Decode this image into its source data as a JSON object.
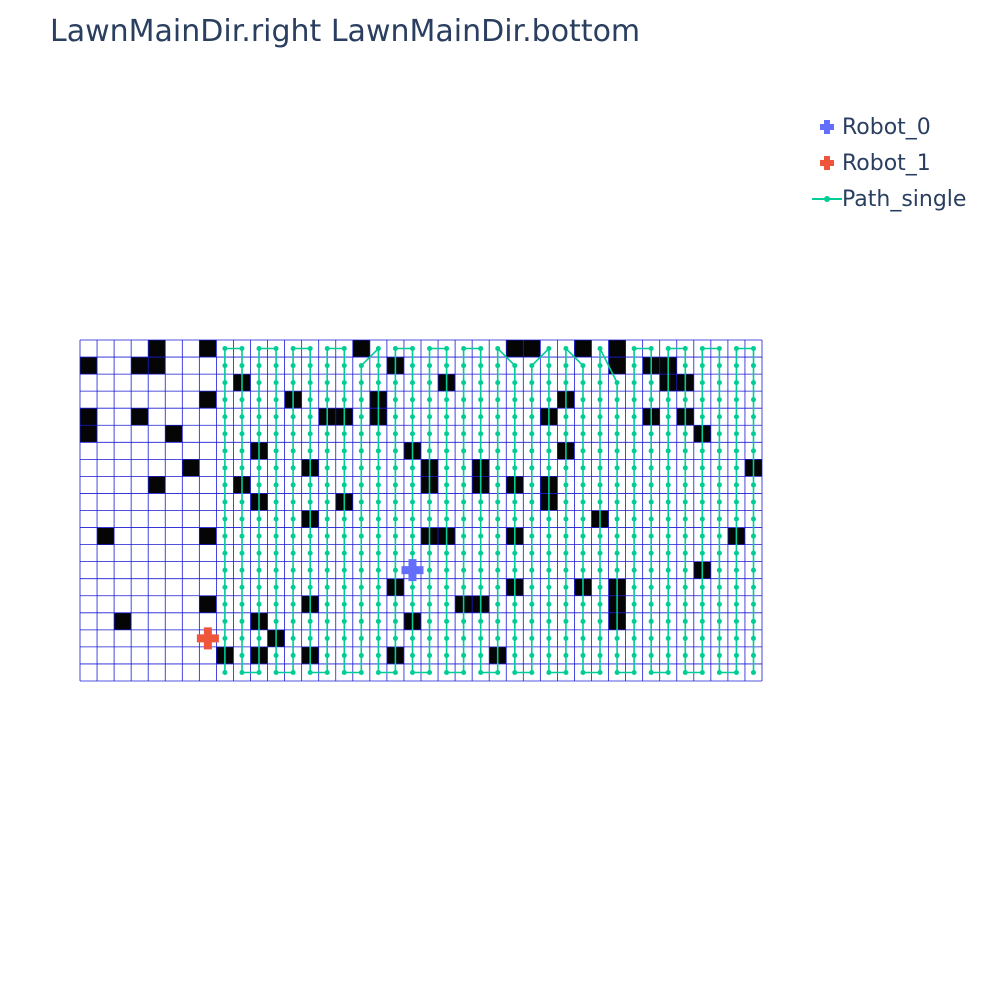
{
  "chart_data": {
    "type": "scatter",
    "title": "LawnMainDir.right LawnMainDir.bottom",
    "grid": {
      "cols": 40,
      "rows": 20,
      "line_color": "#1a1ad6",
      "obstacle_color": "#050505",
      "obstacles": [
        [
          4,
          0
        ],
        [
          7,
          0
        ],
        [
          16,
          0
        ],
        [
          25,
          0
        ],
        [
          26,
          0
        ],
        [
          29,
          0
        ],
        [
          31,
          0
        ],
        [
          0,
          1
        ],
        [
          3,
          1
        ],
        [
          4,
          1
        ],
        [
          18,
          1
        ],
        [
          31,
          1
        ],
        [
          33,
          1
        ],
        [
          34,
          1
        ],
        [
          9,
          2
        ],
        [
          21,
          2
        ],
        [
          34,
          2
        ],
        [
          35,
          2
        ],
        [
          7,
          3
        ],
        [
          12,
          3
        ],
        [
          17,
          3
        ],
        [
          28,
          3
        ],
        [
          0,
          4
        ],
        [
          3,
          4
        ],
        [
          14,
          4
        ],
        [
          15,
          4
        ],
        [
          17,
          4
        ],
        [
          27,
          4
        ],
        [
          33,
          4
        ],
        [
          35,
          4
        ],
        [
          0,
          5
        ],
        [
          5,
          5
        ],
        [
          36,
          5
        ],
        [
          10,
          6
        ],
        [
          19,
          6
        ],
        [
          28,
          6
        ],
        [
          6,
          7
        ],
        [
          13,
          7
        ],
        [
          20,
          7
        ],
        [
          23,
          7
        ],
        [
          39,
          7
        ],
        [
          4,
          8
        ],
        [
          9,
          8
        ],
        [
          20,
          8
        ],
        [
          23,
          8
        ],
        [
          25,
          8
        ],
        [
          27,
          8
        ],
        [
          10,
          9
        ],
        [
          15,
          9
        ],
        [
          27,
          9
        ],
        [
          13,
          10
        ],
        [
          30,
          10
        ],
        [
          1,
          11
        ],
        [
          7,
          11
        ],
        [
          20,
          11
        ],
        [
          21,
          11
        ],
        [
          25,
          11
        ],
        [
          38,
          11
        ],
        [
          36,
          13
        ],
        [
          18,
          14
        ],
        [
          25,
          14
        ],
        [
          29,
          14
        ],
        [
          31,
          14
        ],
        [
          7,
          15
        ],
        [
          13,
          15
        ],
        [
          22,
          15
        ],
        [
          23,
          15
        ],
        [
          31,
          15
        ],
        [
          2,
          16
        ],
        [
          10,
          16
        ],
        [
          19,
          16
        ],
        [
          31,
          16
        ],
        [
          11,
          17
        ],
        [
          8,
          18
        ],
        [
          10,
          18
        ],
        [
          13,
          18
        ],
        [
          18,
          18
        ],
        [
          24,
          18
        ]
      ]
    },
    "path_start_col": 8,
    "path_end_col": 39,
    "series": [
      {
        "name": "Robot_0",
        "kind": "marker",
        "color": "#636efa",
        "x": 19.5,
        "y": 13.5
      },
      {
        "name": "Robot_1",
        "kind": "marker",
        "color": "#ef553b",
        "x": 7.5,
        "y": 17.5
      },
      {
        "name": "Path_single",
        "kind": "line",
        "color": "#00cc96"
      }
    ]
  }
}
